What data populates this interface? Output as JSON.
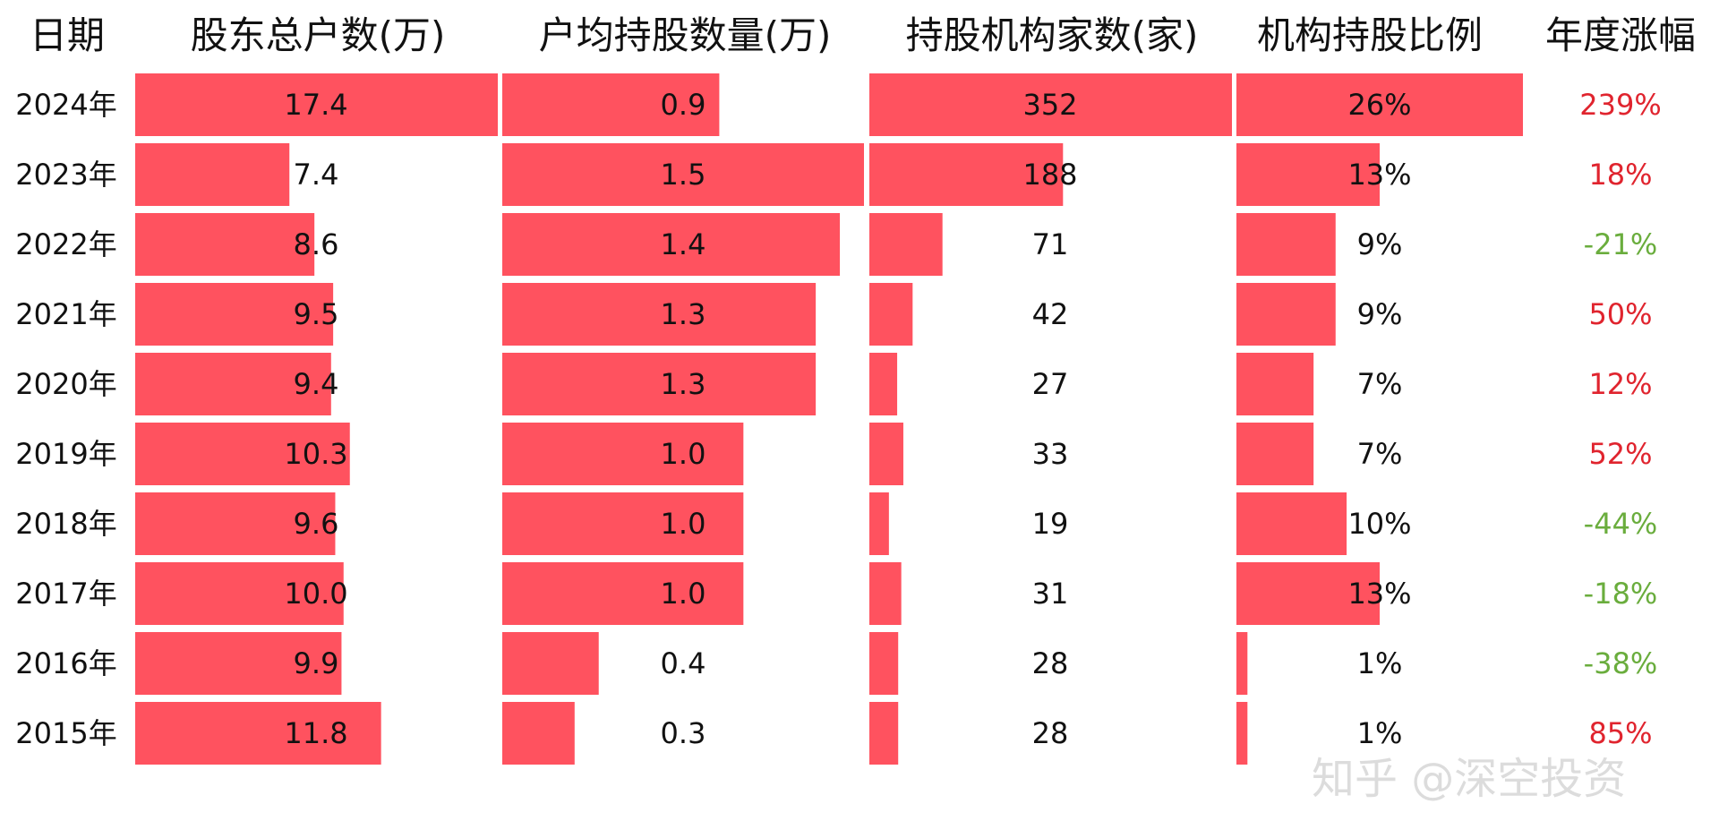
{
  "headers": {
    "date": "日期",
    "holders": "股东总户数(万)",
    "per_holder": "户均持股数量(万)",
    "institutions": "持股机构家数(家)",
    "inst_ratio": "机构持股比例",
    "annual_change": "年度涨幅"
  },
  "watermark": "知乎 @深空投资",
  "colors": {
    "bar": "#FF525F",
    "positive": "#E0242E",
    "negative": "#6AAD3D",
    "text": "#111111"
  },
  "chart_data": {
    "type": "table",
    "rows": [
      {
        "year": "2024年",
        "holders": 17.4,
        "holders_label": "17.4",
        "per_holder": 0.9,
        "per_holder_label": "0.9",
        "institutions": 352,
        "institutions_label": "352",
        "inst_ratio": 26,
        "inst_ratio_label": "26%",
        "change": 239,
        "change_label": "239%"
      },
      {
        "year": "2023年",
        "holders": 7.4,
        "holders_label": "7.4",
        "per_holder": 1.5,
        "per_holder_label": "1.5",
        "institutions": 188,
        "institutions_label": "188",
        "inst_ratio": 13,
        "inst_ratio_label": "13%",
        "change": 18,
        "change_label": "18%"
      },
      {
        "year": "2022年",
        "holders": 8.6,
        "holders_label": "8.6",
        "per_holder": 1.4,
        "per_holder_label": "1.4",
        "institutions": 71,
        "institutions_label": "71",
        "inst_ratio": 9,
        "inst_ratio_label": "9%",
        "change": -21,
        "change_label": "-21%"
      },
      {
        "year": "2021年",
        "holders": 9.5,
        "holders_label": "9.5",
        "per_holder": 1.3,
        "per_holder_label": "1.3",
        "institutions": 42,
        "institutions_label": "42",
        "inst_ratio": 9,
        "inst_ratio_label": "9%",
        "change": 50,
        "change_label": "50%"
      },
      {
        "year": "2020年",
        "holders": 9.4,
        "holders_label": "9.4",
        "per_holder": 1.3,
        "per_holder_label": "1.3",
        "institutions": 27,
        "institutions_label": "27",
        "inst_ratio": 7,
        "inst_ratio_label": "7%",
        "change": 12,
        "change_label": "12%"
      },
      {
        "year": "2019年",
        "holders": 10.3,
        "holders_label": "10.3",
        "per_holder": 1.0,
        "per_holder_label": "1.0",
        "institutions": 33,
        "institutions_label": "33",
        "inst_ratio": 7,
        "inst_ratio_label": "7%",
        "change": 52,
        "change_label": "52%"
      },
      {
        "year": "2018年",
        "holders": 9.6,
        "holders_label": "9.6",
        "per_holder": 1.0,
        "per_holder_label": "1.0",
        "institutions": 19,
        "institutions_label": "19",
        "inst_ratio": 10,
        "inst_ratio_label": "10%",
        "change": -44,
        "change_label": "-44%"
      },
      {
        "year": "2017年",
        "holders": 10.0,
        "holders_label": "10.0",
        "per_holder": 1.0,
        "per_holder_label": "1.0",
        "institutions": 31,
        "institutions_label": "31",
        "inst_ratio": 13,
        "inst_ratio_label": "13%",
        "change": -18,
        "change_label": "-18%"
      },
      {
        "year": "2016年",
        "holders": 9.9,
        "holders_label": "9.9",
        "per_holder": 0.4,
        "per_holder_label": "0.4",
        "institutions": 28,
        "institutions_label": "28",
        "inst_ratio": 1,
        "inst_ratio_label": "1%",
        "change": -38,
        "change_label": "-38%"
      },
      {
        "year": "2015年",
        "holders": 11.8,
        "holders_label": "11.8",
        "per_holder": 0.3,
        "per_holder_label": "0.3",
        "institutions": 28,
        "institutions_label": "28",
        "inst_ratio": 1,
        "inst_ratio_label": "1%",
        "change": 85,
        "change_label": "85%"
      }
    ]
  }
}
